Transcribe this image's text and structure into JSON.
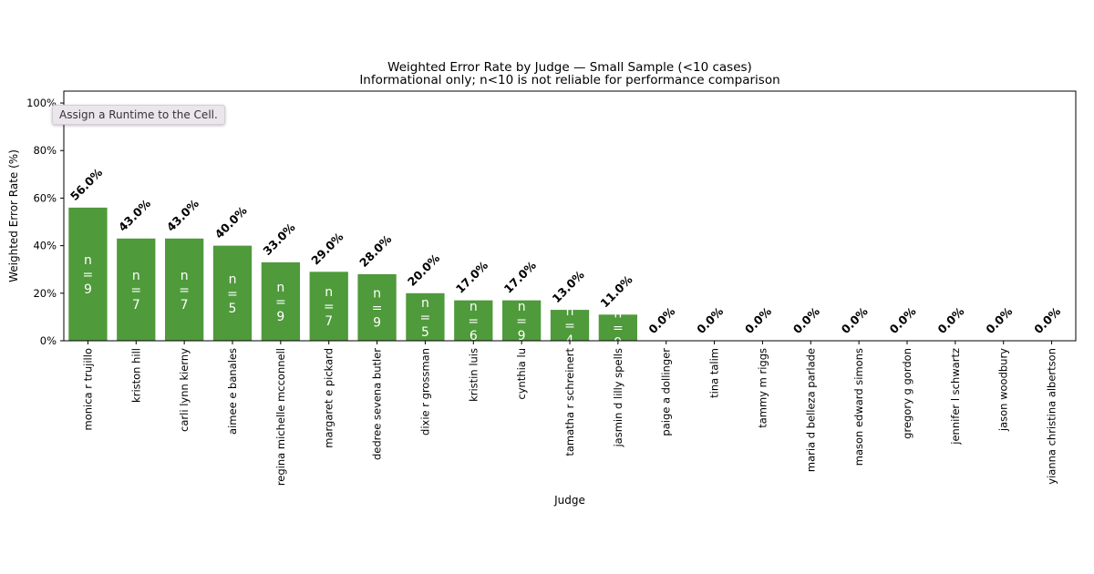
{
  "tooltip": "Assign a Runtime to the Cell.",
  "chart_data": {
    "type": "bar",
    "title": "Weighted Error Rate by Judge — Small Sample (<10 cases)",
    "subtitle": "Informational only; n<10 is not reliable for performance comparison",
    "xlabel": "Judge",
    "ylabel": "Weighted Error Rate (%)",
    "ylim": [
      0,
      105
    ],
    "yticks": [
      0,
      20,
      40,
      60,
      80,
      100
    ],
    "ytick_labels": [
      "0%",
      "20%",
      "40%",
      "60%",
      "80%",
      "100%"
    ],
    "bar_color": "#4f9a3b",
    "grid": false,
    "categories": [
      "monica r trujillo",
      "kriston hill",
      "carli lynn kierny",
      "aimee e banales",
      "regina michelle mcconnell",
      "margaret e pickard",
      "dedree sevena butler",
      "dixie r grossman",
      "kristin luis",
      "cynthia lu",
      "tamatha r schreinert",
      "jasmin d lilly spells",
      "paige a dollinger",
      "tina talim",
      "tammy m riggs",
      "maria d belleza parlade",
      "mason edward simons",
      "gregory g gordon",
      "jennifer l schwartz",
      "jason woodbury",
      "yianna christina albertson"
    ],
    "values": [
      56.0,
      43.0,
      43.0,
      40.0,
      33.0,
      29.0,
      28.0,
      20.0,
      17.0,
      17.0,
      13.0,
      11.0,
      0.0,
      0.0,
      0.0,
      0.0,
      0.0,
      0.0,
      0.0,
      0.0,
      0.0
    ],
    "value_labels": [
      "56.0%",
      "43.0%",
      "43.0%",
      "40.0%",
      "33.0%",
      "29.0%",
      "28.0%",
      "20.0%",
      "17.0%",
      "17.0%",
      "13.0%",
      "11.0%",
      "0.0%",
      "0.0%",
      "0.0%",
      "0.0%",
      "0.0%",
      "0.0%",
      "0.0%",
      "0.0%",
      "0.0%"
    ],
    "n_labels": [
      "n\n=\n9",
      "n\n=\n7",
      "n\n=\n7",
      "n\n=\n5",
      "n\n=\n9",
      "n\n=\n7",
      "n\n=\n9",
      "n\n=\n5",
      "n\n=\n6",
      "n\n=\n9",
      "n\n=\n4",
      "n\n=\n9",
      "",
      "",
      "",
      "",
      "",
      "",
      "",
      "",
      ""
    ]
  }
}
